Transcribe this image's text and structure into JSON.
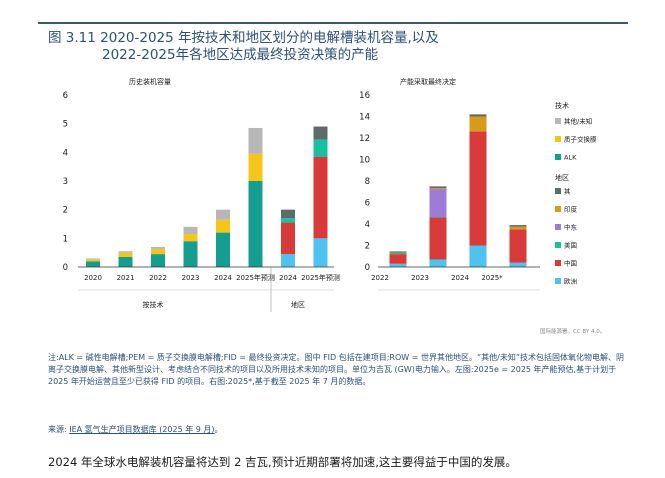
{
  "figure": {
    "title_line1": "图 3.11 2020-2025 年按技术和地区划分的电解槽装机容量,以及",
    "title_line2": "2022-2025年各地区达成最终投资决策的产能"
  },
  "colors": {
    "ALK": "#149e8f",
    "PEM": "#f5c518",
    "other": "#b7b7b7",
    "rest": "#5f6b6b",
    "india": "#d89a1a",
    "mideast": "#9e7bd6",
    "usa": "#19c0a0",
    "china": "#d83a3a",
    "europe": "#4fc3ef"
  },
  "chart_data": [
    {
      "type": "bar",
      "stacked": true,
      "title": "历史装机容量",
      "ylim": [
        0,
        6
      ],
      "yticks": [
        0,
        1,
        2,
        3,
        4,
        5,
        6
      ],
      "group_labels": [
        "按技术",
        "地区"
      ],
      "categories": [
        "2020",
        "2021",
        "2022",
        "2023",
        "2024",
        "2025年预测",
        "2024",
        "2025年预测"
      ],
      "tech_series": [
        {
          "key": "ALK",
          "color": "#149e8f",
          "values": [
            0.2,
            0.35,
            0.45,
            0.9,
            1.2,
            3.0
          ]
        },
        {
          "key": "PEM",
          "color": "#f5c518",
          "values": [
            0.07,
            0.15,
            0.18,
            0.25,
            0.45,
            0.95
          ]
        },
        {
          "key": "other",
          "color": "#b7b7b7",
          "values": [
            0.03,
            0.05,
            0.07,
            0.25,
            0.35,
            0.9
          ]
        }
      ],
      "region_series": [
        {
          "key": "europe",
          "color": "#4fc3ef",
          "values": [
            0.45,
            1.0
          ]
        },
        {
          "key": "china",
          "color": "#d83a3a",
          "values": [
            1.1,
            2.85
          ]
        },
        {
          "key": "usa",
          "color": "#19c0a0",
          "values": [
            0.15,
            0.6
          ]
        },
        {
          "key": "rest",
          "color": "#5f6b6b",
          "values": [
            0.3,
            0.45
          ]
        }
      ]
    },
    {
      "type": "bar",
      "stacked": true,
      "title": "产能采取最终决定",
      "ylim": [
        0,
        16
      ],
      "yticks": [
        0,
        2,
        4,
        6,
        8,
        10,
        12,
        14,
        16
      ],
      "categories": [
        "2022",
        "2023",
        "2024",
        "2025*"
      ],
      "series": [
        {
          "key": "europe",
          "color": "#4fc3ef",
          "values": [
            0.3,
            0.7,
            2.0,
            0.4
          ]
        },
        {
          "key": "china",
          "color": "#d83a3a",
          "values": [
            0.9,
            3.9,
            10.6,
            3.1
          ]
        },
        {
          "key": "usa",
          "color": "#19c0a0",
          "values": [
            0.1,
            0.05,
            0.0,
            0.0
          ]
        },
        {
          "key": "mideast",
          "color": "#9e7bd6",
          "values": [
            0.0,
            2.6,
            0.0,
            0.0
          ]
        },
        {
          "key": "india",
          "color": "#d89a1a",
          "values": [
            0.05,
            0.1,
            1.4,
            0.25
          ]
        },
        {
          "key": "rest",
          "color": "#5f6b6b",
          "values": [
            0.1,
            0.15,
            0.2,
            0.15
          ]
        }
      ]
    }
  ],
  "legend": {
    "tech_header": "技术",
    "tech_items": [
      {
        "key": "other",
        "label": "其他/未知",
        "color": "#b7b7b7"
      },
      {
        "key": "PEM",
        "label": "质子交换膜",
        "color": "#f5c518"
      },
      {
        "key": "ALK",
        "label": "ALK",
        "color": "#149e8f"
      }
    ],
    "region_header": "地区",
    "region_items": [
      {
        "key": "rest",
        "label": "其",
        "color": "#5f6b6b"
      },
      {
        "key": "india",
        "label": "印度",
        "color": "#d89a1a"
      },
      {
        "key": "mideast",
        "label": "中东",
        "color": "#9e7bd6"
      },
      {
        "key": "usa",
        "label": "美国",
        "color": "#19c0a0"
      },
      {
        "key": "china",
        "label": "中国",
        "color": "#d83a3a"
      },
      {
        "key": "europe",
        "label": "欧洲",
        "color": "#4fc3ef"
      }
    ]
  },
  "credit": "国际能源署。CC BY 4.0。",
  "note": "注:ALK = 碱性电解槽;PEM = 质子交换膜电解槽;FID = 最终投资决定。图中 FID 包括在建项目;ROW = 世界其他地区。“其他/未知”技术包括固体氧化物电解、阴离子交换膜电解、其他新型设计、考虑结合不同技术的项目以及所用技术未知的项目。单位为吉瓦 (GW)电力输入。左图:2025e = 2025 年产能预估,基于计划于 2025 年开始运营且至少已获得 FID 的项目。右图:2025*,基于截至 2025 年 7 月的数据。",
  "source": {
    "prefix": "来源:",
    "link_text": "IEA 氢气生产项目数据库 (2025 年 9 月)",
    "suffix": "。"
  },
  "summary": "2024 年全球水电解装机容量将达到 2 吉瓦,预计近期部署将加速,这主要得益于中国的发展。"
}
